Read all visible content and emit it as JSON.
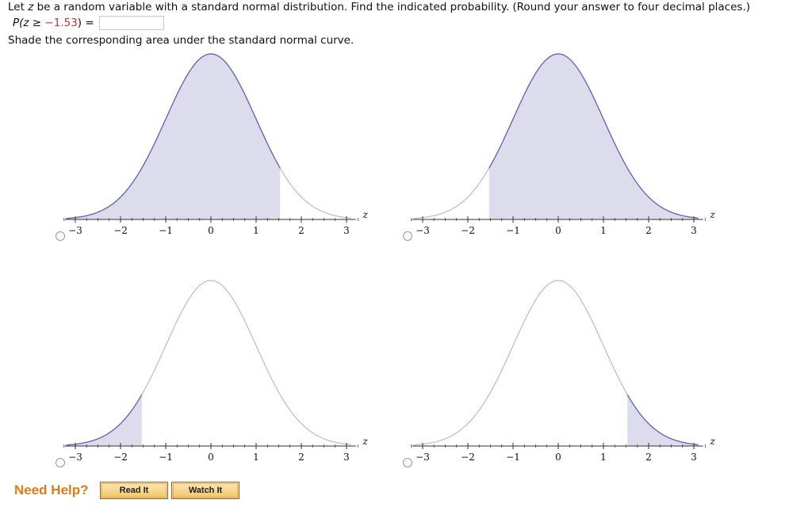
{
  "question": {
    "line1_pre": "Let ",
    "line1_var": "z",
    "line1_post": " be a random variable with a standard normal distribution. Find the indicated probability. (Round your answer to four decimal places.)",
    "prob_pre": "P(",
    "prob_var": "z",
    "prob_op": " ≥ ",
    "prob_value": "−1.53",
    "prob_post": ") ",
    "equals": "=",
    "answer_value": "",
    "instruction": "Shade the corresponding area under the standard normal curve."
  },
  "chart_data": [
    {
      "type": "area",
      "shade": "left",
      "bound": 1.53,
      "xlim": [
        -3,
        3
      ],
      "ticks": [
        "−3",
        "−2",
        "−1",
        "0",
        "1",
        "2",
        "3"
      ],
      "xlabel": "z"
    },
    {
      "type": "area",
      "shade": "right",
      "bound": -1.53,
      "xlim": [
        -3,
        3
      ],
      "ticks": [
        "−3",
        "−2",
        "−1",
        "0",
        "1",
        "2",
        "3"
      ],
      "xlabel": "z"
    },
    {
      "type": "area",
      "shade": "left",
      "bound": -1.53,
      "xlim": [
        -3,
        3
      ],
      "ticks": [
        "−3",
        "−2",
        "−1",
        "0",
        "1",
        "2",
        "3"
      ],
      "xlabel": "z"
    },
    {
      "type": "area",
      "shade": "right",
      "bound": 1.53,
      "xlim": [
        -3,
        3
      ],
      "ticks": [
        "−3",
        "−2",
        "−1",
        "0",
        "1",
        "2",
        "3"
      ],
      "xlabel": "z"
    }
  ],
  "colors": {
    "fill": "#dcdcec",
    "curve_shaded": "#6b6bb3",
    "curve_plain": "#b8b8de",
    "axis": "#333333"
  },
  "help": {
    "label": "Need Help?",
    "read_label": "Read It",
    "watch_label": "Watch It"
  }
}
